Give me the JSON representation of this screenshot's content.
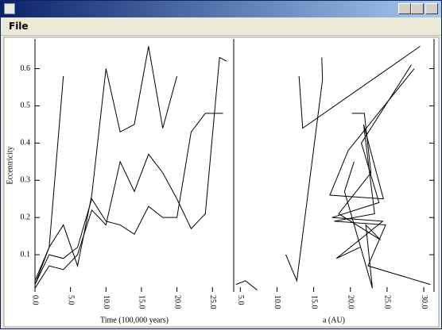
{
  "window": {
    "menu": [
      "File"
    ]
  },
  "chart_data": [
    {
      "type": "line",
      "xlabel": "Time (100,000 years)",
      "ylabel": "Eccentricity",
      "xlim": [
        0,
        28
      ],
      "ylim": [
        0,
        0.68
      ],
      "xticks": [
        {
          "value": 0,
          "label": "0.0"
        },
        {
          "value": 5,
          "label": "5.0"
        },
        {
          "value": 10,
          "label": "10.0"
        },
        {
          "value": 15,
          "label": "15.0"
        },
        {
          "value": 20,
          "label": "20.0"
        },
        {
          "value": 25,
          "label": "25.0"
        }
      ],
      "yticks": [
        0.1,
        0.2,
        0.3,
        0.4,
        0.5,
        0.6
      ],
      "series": [
        {
          "color": "#000000",
          "x": [
            0,
            2,
            4
          ],
          "values": [
            0.02,
            0.12,
            0.58
          ]
        },
        {
          "color": "#000000",
          "x": [
            0,
            2,
            4,
            6,
            8,
            10,
            12,
            14,
            16,
            18,
            20
          ],
          "values": [
            0.03,
            0.12,
            0.18,
            0.07,
            0.26,
            0.6,
            0.43,
            0.45,
            0.66,
            0.44,
            0.58
          ]
        },
        {
          "color": "#000000",
          "x": [
            0,
            2,
            4,
            6,
            8,
            10,
            12,
            14,
            16,
            18,
            20,
            22,
            24,
            26,
            27
          ],
          "values": [
            0.01,
            0.07,
            0.06,
            0.1,
            0.22,
            0.18,
            0.35,
            0.27,
            0.37,
            0.32,
            0.25,
            0.17,
            0.21,
            0.63,
            0.62
          ]
        },
        {
          "color": "#000000",
          "x": [
            0,
            2,
            4,
            6,
            8,
            10,
            12,
            14,
            16,
            18,
            20,
            22,
            24,
            26,
            26.5
          ],
          "values": [
            0.02,
            0.1,
            0.09,
            0.12,
            0.25,
            0.19,
            0.18,
            0.155,
            0.23,
            0.2,
            0.2,
            0.43,
            0.48,
            0.48,
            0.48
          ]
        }
      ]
    },
    {
      "type": "line",
      "xlabel": "a (AU)",
      "xlim": [
        4.1,
        31.4
      ],
      "ylim": [
        0,
        0.68
      ],
      "xticks": [
        {
          "value": 5,
          "label": "5.0"
        },
        {
          "value": 10,
          "label": "10.0"
        },
        {
          "value": 15,
          "label": "15.0"
        },
        {
          "value": 20,
          "label": "20.0"
        },
        {
          "value": 25,
          "label": "25.0"
        },
        {
          "value": 30,
          "label": "30.0"
        }
      ],
      "yticks": [
        0.1,
        0.2,
        0.3,
        0.4,
        0.5,
        0.6
      ],
      "series": [
        {
          "color": "#000000",
          "x": [
            13,
            13.5,
            29.5
          ],
          "values": [
            0.58,
            0.44,
            0.66
          ]
        },
        {
          "color": "#000000",
          "x": [
            16.1,
            16.2,
            12.7,
            11.2
          ],
          "values": [
            0.63,
            0.57,
            0.03,
            0.1
          ]
        },
        {
          "color": "#000000",
          "x": [
            28.7,
            19.7,
            17.2,
            24.5,
            21.8,
            23.3,
            17.8,
            24.8,
            22.4,
            30.9
          ],
          "values": [
            0.6,
            0.38,
            0.26,
            0.25,
            0.45,
            0.21,
            0.19,
            0.18,
            0.07,
            0.02
          ]
        },
        {
          "color": "#000000",
          "x": [
            20.2,
            21.9,
            22.8,
            18.4,
            24.1,
            22.1,
            23.0,
            19.2,
            20.5
          ],
          "values": [
            0.48,
            0.48,
            0.32,
            0.21,
            0.14,
            0.18,
            0.01,
            0.27,
            0.35
          ]
        },
        {
          "color": "#000000",
          "x": [
            28.3,
            21.5,
            23.9,
            17.5,
            24.4,
            18.1,
            21.3
          ],
          "values": [
            0.61,
            0.4,
            0.24,
            0.2,
            0.19,
            0.09,
            0.12
          ]
        },
        {
          "color": "#000000",
          "x": [
            4.4,
            5.7,
            7.3
          ],
          "values": [
            0.02,
            0.03,
            0.005
          ]
        }
      ]
    }
  ]
}
